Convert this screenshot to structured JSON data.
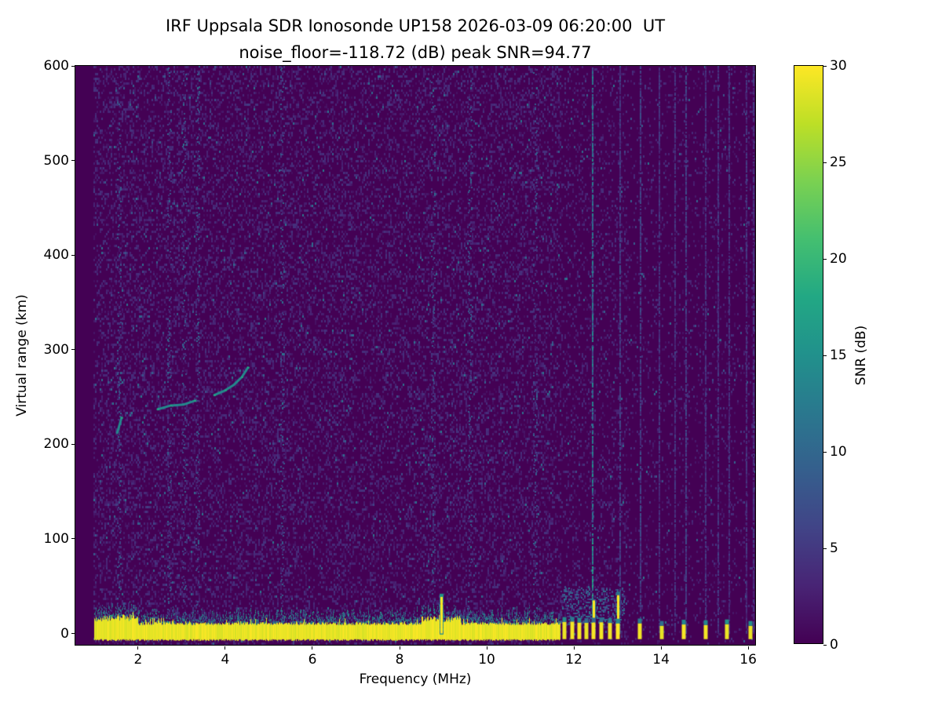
{
  "chart_data": {
    "type": "heatmap",
    "title": "IRF Uppsala SDR Ionosonde UP158 2026-03-09 06:20:00  UT",
    "subtitle": "noise_floor=-118.72 (dB) peak SNR=94.77",
    "xlabel": "Frequency (MHz)",
    "ylabel": "Virtual range (km)",
    "colorbar_label": "SNR (dB)",
    "noise_floor_db": -118.72,
    "peak_snr_db": 94.77,
    "xlim": [
      0.56,
      16.16
    ],
    "ylim": [
      -12,
      600
    ],
    "clim": [
      0,
      30
    ],
    "x_ticks": [
      2,
      4,
      6,
      8,
      10,
      12,
      14,
      16
    ],
    "y_ticks": [
      0,
      100,
      200,
      300,
      400,
      500,
      600
    ],
    "colorbar_ticks": [
      0,
      5,
      10,
      15,
      20,
      25,
      30
    ],
    "grid": false,
    "colormap": "viridis",
    "background_color": "#440154",
    "peak_color": "#fde725",
    "colormap_stops": [
      [
        0.0,
        "#440154"
      ],
      [
        0.1,
        "#482475"
      ],
      [
        0.2,
        "#414487"
      ],
      [
        0.3,
        "#355f8d"
      ],
      [
        0.4,
        "#2a788e"
      ],
      [
        0.5,
        "#21918c"
      ],
      [
        0.6,
        "#22a884"
      ],
      [
        0.7,
        "#44bf70"
      ],
      [
        0.8,
        "#7ad151"
      ],
      [
        0.9,
        "#bddf26"
      ],
      [
        1.0,
        "#fde725"
      ]
    ],
    "background_snr_db": 0,
    "features": {
      "ground_clutter_band": {
        "freq_mhz": [
          1.0,
          11.68
        ],
        "range_km": [
          -6,
          9
        ],
        "snr_db": 30
      },
      "ground_band_gap_ticks_mhz": [
        11.78,
        11.97,
        12.13,
        12.28,
        12.45,
        12.63,
        12.82,
        13.0
      ],
      "isolated_ticks_mhz": [
        13.52,
        14.02,
        14.52,
        15.02,
        15.52,
        16.05
      ],
      "spikes": [
        {
          "freq_mhz": 8.95,
          "top_km": 42
        },
        {
          "freq_mhz": 12.45,
          "top_km": 38
        },
        {
          "freq_mhz": 13.0,
          "top_km": 44
        }
      ],
      "echo_trace": {
        "snr_db": 14,
        "segments": [
          [
            [
              1.52,
              212
            ],
            [
              1.62,
              228
            ]
          ],
          [
            [
              2.45,
              237
            ],
            [
              2.75,
              241
            ],
            [
              3.05,
              242
            ],
            [
              3.3,
              246
            ]
          ],
          [
            [
              3.75,
              252
            ],
            [
              4.0,
              257
            ],
            [
              4.2,
              263
            ],
            [
              4.38,
              271
            ],
            [
              4.52,
              281
            ]
          ]
        ]
      },
      "rfi_lines": [
        {
          "freq_mhz": 12.42,
          "snr_db": 10,
          "range_km": [
            0,
            600
          ]
        },
        {
          "freq_mhz": 13.05,
          "snr_db": 5,
          "range_km": [
            0,
            600
          ]
        },
        {
          "freq_mhz": 13.52,
          "snr_db": 5,
          "range_km": [
            0,
            600
          ]
        },
        {
          "freq_mhz": 13.95,
          "snr_db": 4,
          "range_km": [
            0,
            600
          ]
        },
        {
          "freq_mhz": 14.3,
          "snr_db": 4,
          "range_km": [
            0,
            600
          ]
        },
        {
          "freq_mhz": 14.55,
          "snr_db": 5,
          "range_km": [
            0,
            600
          ]
        },
        {
          "freq_mhz": 15.0,
          "snr_db": 4,
          "range_km": [
            0,
            600
          ]
        },
        {
          "freq_mhz": 15.3,
          "snr_db": 4,
          "range_km": [
            0,
            600
          ]
        },
        {
          "freq_mhz": 15.55,
          "snr_db": 4,
          "range_km": [
            0,
            600
          ]
        },
        {
          "freq_mhz": 15.95,
          "snr_db": 4,
          "range_km": [
            0,
            600
          ]
        },
        {
          "freq_mhz": 16.1,
          "snr_db": 4,
          "range_km": [
            0,
            600
          ]
        }
      ],
      "noise_columns_mhz": [
        1.55,
        2.7,
        3.05,
        3.35,
        5.3,
        8.75,
        9.6,
        11.1
      ],
      "cluster_noise_region": {
        "freq_mhz": [
          11.7,
          13.15
        ],
        "range_km": [
          10,
          48
        ]
      }
    }
  }
}
